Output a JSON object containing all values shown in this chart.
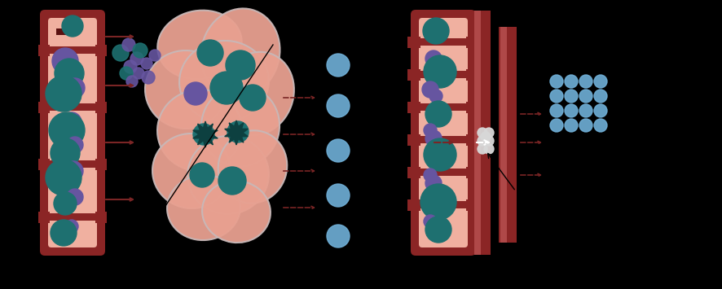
{
  "bg_color": "#000000",
  "vessel_inner_color": "#f0b0a0",
  "vessel_wall_color": "#8b2525",
  "vessel_wall_light": "#c86060",
  "teal_color": "#1e7070",
  "purple_color": "#6655a0",
  "blue_light_color": "#70b0d8",
  "arrow_color": "#7a2525",
  "tumor_color": "#e8a090",
  "tumor_outline": "#c8b8b8",
  "fig_width": 8.86,
  "fig_height": 3.55
}
